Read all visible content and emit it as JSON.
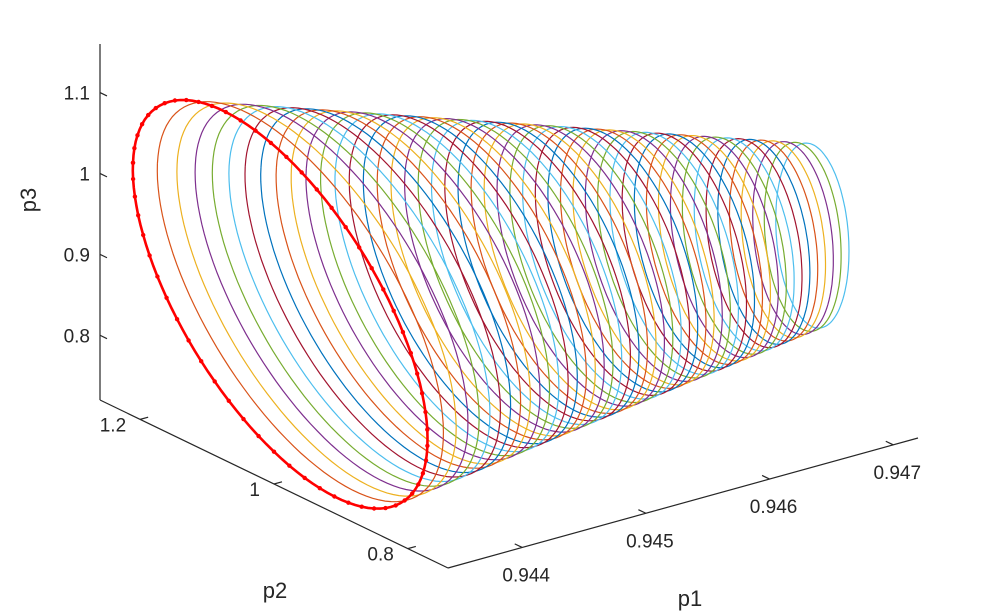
{
  "chart_data": {
    "type": "line",
    "projection": "3d",
    "description_free": true,
    "xlabel": "p1",
    "ylabel": "p2",
    "zlabel": "p3",
    "x_ticks": [
      "0.944",
      "0.945",
      "0.946",
      "0.947"
    ],
    "y_ticks": [
      "0.8",
      "1",
      "1.2"
    ],
    "z_ticks": [
      "0.8",
      "0.9",
      "1",
      "1.1"
    ],
    "xlim": [
      0.9434,
      0.9472
    ],
    "ylim": [
      0.74,
      1.26
    ],
    "zlim": [
      0.72,
      1.16
    ],
    "grid": false,
    "legend": "none",
    "series_colors": [
      "#0072BD",
      "#D95319",
      "#EDB120",
      "#7E2F8E",
      "#77AC30",
      "#4DBEEE",
      "#A2142F"
    ],
    "highlight_color": "#ff0000",
    "series_count": 48,
    "orbit_center_start": [
      0.94345,
      1.0,
      0.94
    ],
    "orbit_center_end": [
      0.9464,
      0.75,
      1.0
    ],
    "orbit_radius_start": [
      5e-05,
      0.22,
      0.2
    ],
    "orbit_radius_end": [
      0.00012,
      0.05,
      0.1
    ],
    "highlighted_orbit_marker": "dot"
  }
}
